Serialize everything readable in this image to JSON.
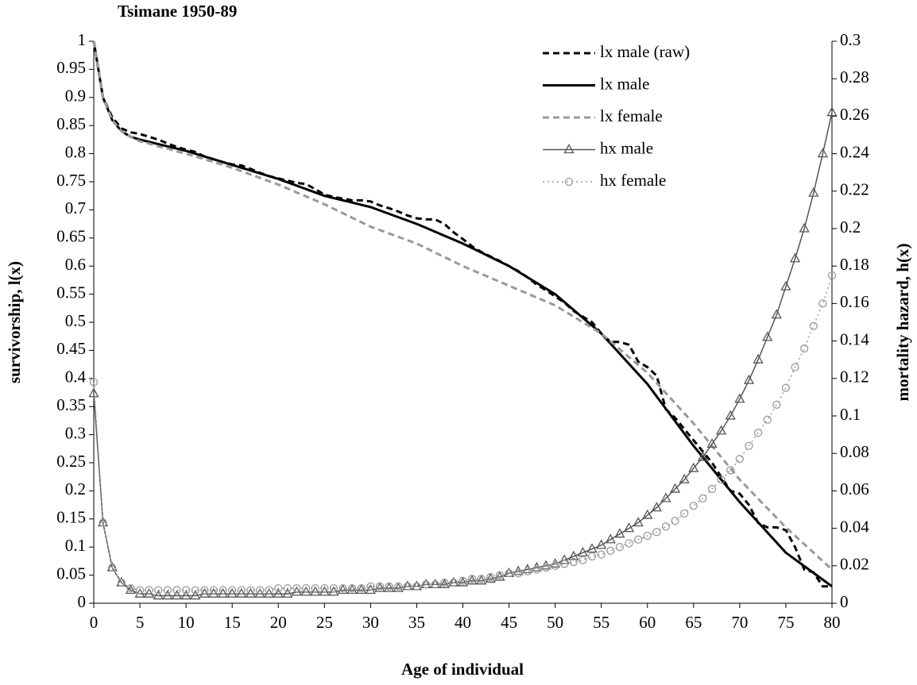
{
  "chart_data": {
    "type": "line",
    "title": "Tsimane 1950-89",
    "x_label": "Age of individual",
    "y_label": "survivorship, l(x)",
    "y2_label": "mortality hazard, h(x)",
    "x": [
      0,
      1,
      2,
      3,
      4,
      5,
      6,
      7,
      8,
      9,
      10,
      11,
      12,
      13,
      14,
      15,
      16,
      17,
      18,
      19,
      20,
      21,
      22,
      23,
      24,
      25,
      26,
      27,
      28,
      29,
      30,
      31,
      32,
      33,
      34,
      35,
      36,
      37,
      38,
      39,
      40,
      41,
      42,
      43,
      44,
      45,
      46,
      47,
      48,
      49,
      50,
      51,
      52,
      53,
      54,
      55,
      56,
      57,
      58,
      59,
      60,
      61,
      62,
      63,
      64,
      65,
      66,
      67,
      68,
      69,
      70,
      71,
      72,
      73,
      74,
      75,
      76,
      77,
      78,
      79,
      80
    ],
    "xlim": [
      0,
      80
    ],
    "xticks": [
      0,
      5,
      10,
      15,
      20,
      25,
      30,
      35,
      40,
      45,
      50,
      55,
      60,
      65,
      70,
      75,
      80
    ],
    "ylim": [
      0,
      1
    ],
    "yticks": [
      0,
      0.05,
      0.1,
      0.15,
      0.2,
      0.25,
      0.3,
      0.35,
      0.4,
      0.45,
      0.5,
      0.55,
      0.6,
      0.65,
      0.7,
      0.75,
      0.8,
      0.85,
      0.9,
      0.95,
      1
    ],
    "y2lim": [
      0,
      0.3
    ],
    "y2ticks": [
      0,
      0.02,
      0.04,
      0.06,
      0.08,
      0.1,
      0.12,
      0.14,
      0.16,
      0.18,
      0.2,
      0.22,
      0.24,
      0.26,
      0.28,
      0.3
    ],
    "legend": "upper right",
    "series": [
      {
        "name": "lx male (raw)",
        "color": "#000000",
        "dash": "dashed",
        "marker": "none",
        "values": [
          1.0,
          0.9,
          0.865,
          0.845,
          0.838,
          0.835,
          0.83,
          0.825,
          0.818,
          0.812,
          0.807,
          0.803,
          0.795,
          0.79,
          0.785,
          0.781,
          0.779,
          0.773,
          0.766,
          0.76,
          0.756,
          0.752,
          0.748,
          0.746,
          0.737,
          0.727,
          0.723,
          0.72,
          0.717,
          0.717,
          0.715,
          0.708,
          0.703,
          0.697,
          0.69,
          0.685,
          0.683,
          0.683,
          0.675,
          0.66,
          0.648,
          0.635,
          0.625,
          0.617,
          0.609,
          0.6,
          0.591,
          0.58,
          0.567,
          0.557,
          0.546,
          0.535,
          0.52,
          0.51,
          0.5,
          0.48,
          0.465,
          0.465,
          0.46,
          0.43,
          0.42,
          0.405,
          0.345,
          0.33,
          0.31,
          0.29,
          0.27,
          0.25,
          0.225,
          0.2,
          0.195,
          0.175,
          0.143,
          0.135,
          0.135,
          0.13,
          0.1,
          0.06,
          0.055,
          0.03,
          0.03
        ]
      },
      {
        "name": "lx male",
        "color": "#000000",
        "dash": "solid",
        "marker": "none",
        "values": [
          1.0,
          0.9,
          0.86,
          0.84,
          0.83,
          0.825,
          0.821,
          0.817,
          0.813,
          0.809,
          0.805,
          0.8,
          0.795,
          0.79,
          0.785,
          0.78,
          0.775,
          0.77,
          0.765,
          0.76,
          0.755,
          0.749,
          0.743,
          0.737,
          0.731,
          0.725,
          0.721,
          0.717,
          0.713,
          0.709,
          0.705,
          0.699,
          0.693,
          0.687,
          0.681,
          0.675,
          0.668,
          0.661,
          0.654,
          0.647,
          0.64,
          0.632,
          0.624,
          0.616,
          0.608,
          0.6,
          0.59,
          0.58,
          0.57,
          0.56,
          0.55,
          0.536,
          0.522,
          0.508,
          0.494,
          0.48,
          0.462,
          0.444,
          0.426,
          0.408,
          0.39,
          0.368,
          0.346,
          0.324,
          0.302,
          0.28,
          0.26,
          0.24,
          0.22,
          0.2,
          0.18,
          0.162,
          0.144,
          0.126,
          0.108,
          0.09,
          0.078,
          0.066,
          0.054,
          0.042,
          0.03
        ]
      },
      {
        "name": "lx female",
        "color": "#999999",
        "dash": "dashed",
        "marker": "none",
        "values": [
          1.0,
          0.9,
          0.86,
          0.84,
          0.83,
          0.822,
          0.818,
          0.813,
          0.809,
          0.804,
          0.8,
          0.795,
          0.79,
          0.785,
          0.78,
          0.775,
          0.769,
          0.763,
          0.757,
          0.751,
          0.745,
          0.738,
          0.731,
          0.724,
          0.717,
          0.71,
          0.702,
          0.694,
          0.686,
          0.678,
          0.67,
          0.664,
          0.658,
          0.652,
          0.646,
          0.64,
          0.632,
          0.624,
          0.616,
          0.608,
          0.6,
          0.593,
          0.586,
          0.579,
          0.572,
          0.565,
          0.558,
          0.551,
          0.544,
          0.537,
          0.53,
          0.52,
          0.51,
          0.5,
          0.49,
          0.48,
          0.466,
          0.452,
          0.438,
          0.424,
          0.41,
          0.392,
          0.374,
          0.356,
          0.338,
          0.32,
          0.3,
          0.28,
          0.26,
          0.24,
          0.22,
          0.203,
          0.186,
          0.169,
          0.152,
          0.135,
          0.12,
          0.105,
          0.09,
          0.075,
          0.06
        ]
      },
      {
        "name": "hx male",
        "color": "#555555",
        "dash": "solid",
        "marker": "triangle",
        "axis": "y2",
        "values": [
          0.112,
          0.043,
          0.019,
          0.011,
          0.007,
          0.005,
          0.005,
          0.004,
          0.004,
          0.004,
          0.004,
          0.004,
          0.005,
          0.005,
          0.005,
          0.005,
          0.005,
          0.005,
          0.005,
          0.005,
          0.005,
          0.005,
          0.006,
          0.006,
          0.006,
          0.006,
          0.006,
          0.007,
          0.007,
          0.007,
          0.007,
          0.008,
          0.008,
          0.008,
          0.009,
          0.009,
          0.01,
          0.01,
          0.01,
          0.011,
          0.011,
          0.012,
          0.012,
          0.013,
          0.014,
          0.016,
          0.017,
          0.018,
          0.019,
          0.02,
          0.021,
          0.023,
          0.025,
          0.027,
          0.029,
          0.031,
          0.034,
          0.037,
          0.04,
          0.043,
          0.047,
          0.051,
          0.056,
          0.061,
          0.066,
          0.072,
          0.078,
          0.085,
          0.092,
          0.1,
          0.109,
          0.119,
          0.13,
          0.142,
          0.154,
          0.169,
          0.184,
          0.2,
          0.219,
          0.24,
          0.262
        ]
      },
      {
        "name": "hx female",
        "color": "#999999",
        "dash": "dotted",
        "marker": "circle",
        "axis": "y2",
        "values": [
          0.118,
          0.043,
          0.019,
          0.011,
          0.008,
          0.007,
          0.007,
          0.007,
          0.007,
          0.007,
          0.007,
          0.007,
          0.007,
          0.007,
          0.007,
          0.007,
          0.007,
          0.007,
          0.007,
          0.007,
          0.008,
          0.008,
          0.008,
          0.008,
          0.008,
          0.008,
          0.008,
          0.008,
          0.008,
          0.008,
          0.009,
          0.009,
          0.009,
          0.009,
          0.009,
          0.009,
          0.01,
          0.01,
          0.011,
          0.011,
          0.012,
          0.013,
          0.013,
          0.014,
          0.015,
          0.016,
          0.016,
          0.017,
          0.018,
          0.019,
          0.02,
          0.021,
          0.022,
          0.023,
          0.025,
          0.026,
          0.028,
          0.03,
          0.032,
          0.034,
          0.036,
          0.038,
          0.041,
          0.044,
          0.048,
          0.052,
          0.056,
          0.061,
          0.066,
          0.071,
          0.077,
          0.084,
          0.091,
          0.098,
          0.106,
          0.115,
          0.126,
          0.136,
          0.148,
          0.16,
          0.175
        ]
      }
    ]
  }
}
